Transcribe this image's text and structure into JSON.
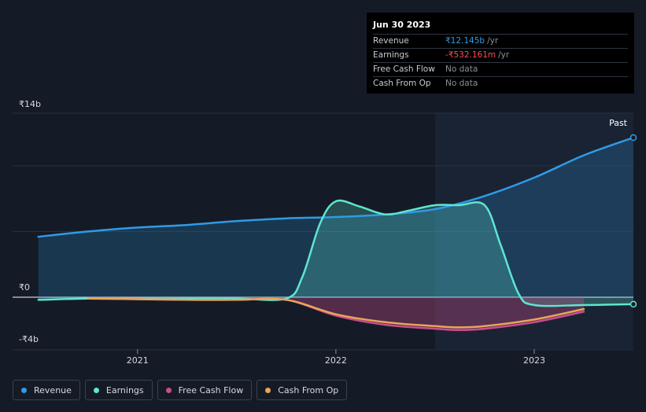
{
  "tooltip": {
    "date": "Jun 30 2023",
    "rows": [
      {
        "label": "Revenue",
        "value": "₹12.145b",
        "unit": "/yr",
        "color": "#2f9be6"
      },
      {
        "label": "Earnings",
        "value": "-₹532.161m",
        "unit": "/yr",
        "color": "#ff4d4d"
      },
      {
        "label": "Free Cash Flow",
        "value": "No data",
        "unit": "",
        "color": "#8a8f98"
      },
      {
        "label": "Cash From Op",
        "value": "No data",
        "unit": "",
        "color": "#8a8f98"
      }
    ]
  },
  "past_label": "Past",
  "legend": [
    {
      "label": "Revenue",
      "color": "#2f9be6"
    },
    {
      "label": "Earnings",
      "color": "#5ee6d0"
    },
    {
      "label": "Free Cash Flow",
      "color": "#c94d8c"
    },
    {
      "label": "Cash From Op",
      "color": "#e8a55a"
    }
  ],
  "chart_data": {
    "type": "line",
    "ylim": [
      -4,
      14
    ],
    "y_tick_labels": [
      {
        "value": 14,
        "label": "₹14b"
      },
      {
        "value": 0,
        "label": "₹0"
      },
      {
        "value": -4,
        "label": "-₹4b"
      }
    ],
    "x_tick_labels": [
      {
        "value": 2021.0,
        "label": "2021"
      },
      {
        "value": 2022.0,
        "label": "2022"
      },
      {
        "value": 2023.0,
        "label": "2023"
      }
    ],
    "xlim": [
      2020.37,
      2023.5
    ],
    "past_from": 2022.5,
    "grid": true,
    "series": [
      {
        "name": "Revenue",
        "color": "#2f9be6",
        "fill": true,
        "points": [
          [
            2020.5,
            4.6
          ],
          [
            2020.75,
            5.0
          ],
          [
            2021.0,
            5.3
          ],
          [
            2021.25,
            5.5
          ],
          [
            2021.5,
            5.8
          ],
          [
            2021.75,
            6.0
          ],
          [
            2022.0,
            6.1
          ],
          [
            2022.25,
            6.3
          ],
          [
            2022.5,
            6.7
          ],
          [
            2022.75,
            7.7
          ],
          [
            2023.0,
            9.1
          ],
          [
            2023.25,
            10.8
          ],
          [
            2023.5,
            12.145
          ]
        ]
      },
      {
        "name": "Earnings",
        "color": "#5ee6d0",
        "fill": true,
        "points": [
          [
            2020.5,
            -0.2
          ],
          [
            2020.75,
            -0.1
          ],
          [
            2021.0,
            -0.1
          ],
          [
            2021.25,
            -0.1
          ],
          [
            2021.5,
            -0.1
          ],
          [
            2021.75,
            -0.1
          ],
          [
            2021.83,
            1.5
          ],
          [
            2021.92,
            5.6
          ],
          [
            2022.0,
            7.3
          ],
          [
            2022.12,
            6.9
          ],
          [
            2022.25,
            6.3
          ],
          [
            2022.37,
            6.6
          ],
          [
            2022.5,
            7.0
          ],
          [
            2022.62,
            7.0
          ],
          [
            2022.75,
            7.0
          ],
          [
            2022.83,
            4.0
          ],
          [
            2022.92,
            0.3
          ],
          [
            2023.0,
            -0.6
          ],
          [
            2023.25,
            -0.6
          ],
          [
            2023.5,
            -0.532
          ]
        ]
      },
      {
        "name": "Free Cash Flow",
        "color": "#c94d8c",
        "fill": true,
        "points": [
          [
            2020.75,
            -0.1
          ],
          [
            2021.0,
            -0.15
          ],
          [
            2021.25,
            -0.2
          ],
          [
            2021.5,
            -0.2
          ],
          [
            2021.75,
            -0.2
          ],
          [
            2022.0,
            -1.4
          ],
          [
            2022.25,
            -2.1
          ],
          [
            2022.5,
            -2.4
          ],
          [
            2022.62,
            -2.5
          ],
          [
            2022.75,
            -2.4
          ],
          [
            2023.0,
            -1.9
          ],
          [
            2023.25,
            -1.1
          ]
        ]
      },
      {
        "name": "Cash From Op",
        "color": "#e8a55a",
        "fill": false,
        "points": [
          [
            2020.75,
            -0.1
          ],
          [
            2021.0,
            -0.15
          ],
          [
            2021.25,
            -0.2
          ],
          [
            2021.5,
            -0.2
          ],
          [
            2021.75,
            -0.2
          ],
          [
            2022.0,
            -1.3
          ],
          [
            2022.25,
            -1.9
          ],
          [
            2022.5,
            -2.2
          ],
          [
            2022.62,
            -2.3
          ],
          [
            2022.75,
            -2.2
          ],
          [
            2023.0,
            -1.7
          ],
          [
            2023.25,
            -0.9
          ]
        ]
      }
    ]
  }
}
